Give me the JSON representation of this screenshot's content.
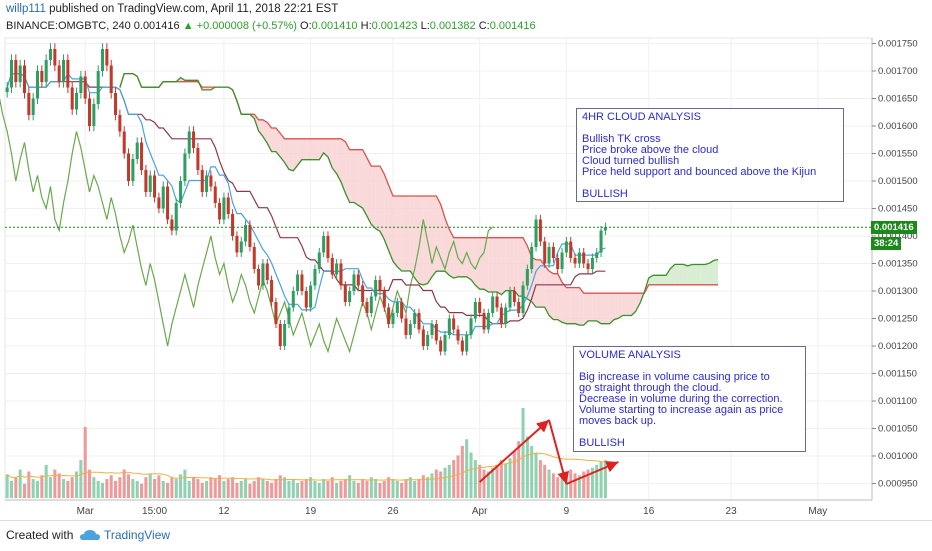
{
  "header": {
    "user": "willp111",
    "published": "published on TradingView.com, April 11, 2018 22:21 EST",
    "symbol": "BINANCE:OMGBTC, 240",
    "last": "0.001416",
    "change": "+0.000008 (+0.57%)",
    "o_label": "O:",
    "o": "0.001410",
    "h_label": "H:",
    "h": "0.001423",
    "l_label": "L:",
    "l": "0.001382",
    "c_label": "C:",
    "c": "0.001416"
  },
  "price_badge": {
    "price": "0.001416",
    "countdown": "38:24"
  },
  "notes": {
    "cloud": [
      "4HR CLOUD ANALYSIS",
      "",
      "Bullish TK cross",
      "Price broke above the cloud",
      "Cloud turned bullish",
      "Price held support and bounced above the Kijun",
      "",
      "BULLISH"
    ],
    "volume": [
      "VOLUME ANALYSIS",
      "",
      "Big increase in volume causing price to",
      "go straight through the cloud.",
      "Decrease in volume during the correction.",
      "Volume starting to increase again as price",
      "moves back up.",
      "",
      "BULLISH"
    ]
  },
  "footer": {
    "created": "Created with",
    "brand": "TradingView"
  },
  "colors": {
    "up": "#2e9e63",
    "down": "#c0392b",
    "tenkan": "#4aa3df",
    "kijun": "#8b3a4a",
    "spanA": "#3d8f2b",
    "spanB": "#d9534f",
    "lagging": "#6aa84f",
    "cloudBull": "#cfe8c8",
    "cloudBear": "#f7cfcf",
    "annotation": "#e02020"
  },
  "chart_data": {
    "type": "candlestick",
    "ylim": [
      0.00092,
      0.00176
    ],
    "y_ticks": [
      "0.001750",
      "0.001700",
      "0.001650",
      "0.001600",
      "0.001550",
      "0.001500",
      "0.001450",
      "0.001400",
      "0.001350",
      "0.001300",
      "0.001250",
      "0.001200",
      "0.001150",
      "0.001100",
      "0.001050",
      "0.001000",
      "0.000950"
    ],
    "x_ticks": [
      "Mar",
      "15:00",
      "12",
      "19",
      "26",
      "Apr",
      "9",
      "16",
      "23",
      "May"
    ],
    "x_tick_index": [
      18,
      34,
      50,
      70,
      89,
      109,
      129,
      148,
      167,
      187
    ],
    "last_price": 0.001416,
    "close": [
      0.00167,
      0.00172,
      0.00168,
      0.00171,
      0.00166,
      0.00162,
      0.00165,
      0.0017,
      0.00168,
      0.00172,
      0.00174,
      0.00171,
      0.00168,
      0.00172,
      0.00167,
      0.00163,
      0.00166,
      0.00169,
      0.00165,
      0.0016,
      0.00164,
      0.0017,
      0.00174,
      0.00171,
      0.00166,
      0.00162,
      0.00159,
      0.00155,
      0.0015,
      0.00154,
      0.00157,
      0.00152,
      0.00148,
      0.00151,
      0.00147,
      0.00145,
      0.00149,
      0.00143,
      0.00141,
      0.00146,
      0.0015,
      0.00155,
      0.00159,
      0.00156,
      0.00152,
      0.00148,
      0.00151,
      0.00149,
      0.00146,
      0.00143,
      0.00147,
      0.00144,
      0.0014,
      0.00137,
      0.00139,
      0.00142,
      0.00138,
      0.00134,
      0.00131,
      0.00135,
      0.00132,
      0.00128,
      0.00124,
      0.0012,
      0.00124,
      0.00127,
      0.0013,
      0.00133,
      0.0013,
      0.00127,
      0.00131,
      0.00134,
      0.00137,
      0.0014,
      0.00136,
      0.00133,
      0.00135,
      0.00131,
      0.00128,
      0.0013,
      0.00133,
      0.00131,
      0.00128,
      0.00126,
      0.00129,
      0.00132,
      0.0013,
      0.00127,
      0.00124,
      0.00126,
      0.00128,
      0.00125,
      0.00122,
      0.00124,
      0.00126,
      0.00123,
      0.0012,
      0.00122,
      0.00124,
      0.00121,
      0.00119,
      0.00122,
      0.00125,
      0.00123,
      0.00121,
      0.00119,
      0.00122,
      0.00125,
      0.00128,
      0.00126,
      0.00123,
      0.00126,
      0.00129,
      0.00127,
      0.00124,
      0.00127,
      0.0013,
      0.00128,
      0.00126,
      0.00131,
      0.00134,
      0.00138,
      0.00143,
      0.00139,
      0.00135,
      0.00138,
      0.00136,
      0.00134,
      0.00137,
      0.00139,
      0.00136,
      0.00135,
      0.00137,
      0.00135,
      0.00134,
      0.00136,
      0.00137,
      0.00141,
      0.001416
    ],
    "volume": [
      25,
      18,
      22,
      30,
      15,
      28,
      20,
      18,
      24,
      35,
      22,
      30,
      26,
      20,
      18,
      22,
      28,
      40,
      75,
      30,
      22,
      18,
      16,
      20,
      24,
      18,
      22,
      30,
      25,
      20,
      18,
      15,
      22,
      26,
      20,
      24,
      18,
      16,
      22,
      20,
      25,
      30,
      18,
      22,
      20,
      16,
      18,
      22,
      20,
      24,
      18,
      20,
      22,
      16,
      18,
      20,
      15,
      18,
      22,
      20,
      18,
      16,
      20,
      24,
      22,
      18,
      20,
      16,
      18,
      20,
      22,
      18,
      16,
      20,
      18,
      22,
      16,
      18,
      20,
      24,
      18,
      16,
      20,
      18,
      22,
      20,
      16,
      18,
      22,
      20,
      18,
      16,
      20,
      22,
      18,
      20,
      24,
      22,
      26,
      30,
      28,
      32,
      35,
      40,
      45,
      55,
      62,
      48,
      40,
      35,
      30,
      28,
      32,
      35,
      40,
      36,
      42,
      50,
      60,
      95,
      65,
      55,
      48,
      40,
      35,
      30,
      26,
      22,
      24,
      28,
      30,
      26,
      24,
      28,
      30,
      32,
      35,
      38,
      40
    ]
  }
}
